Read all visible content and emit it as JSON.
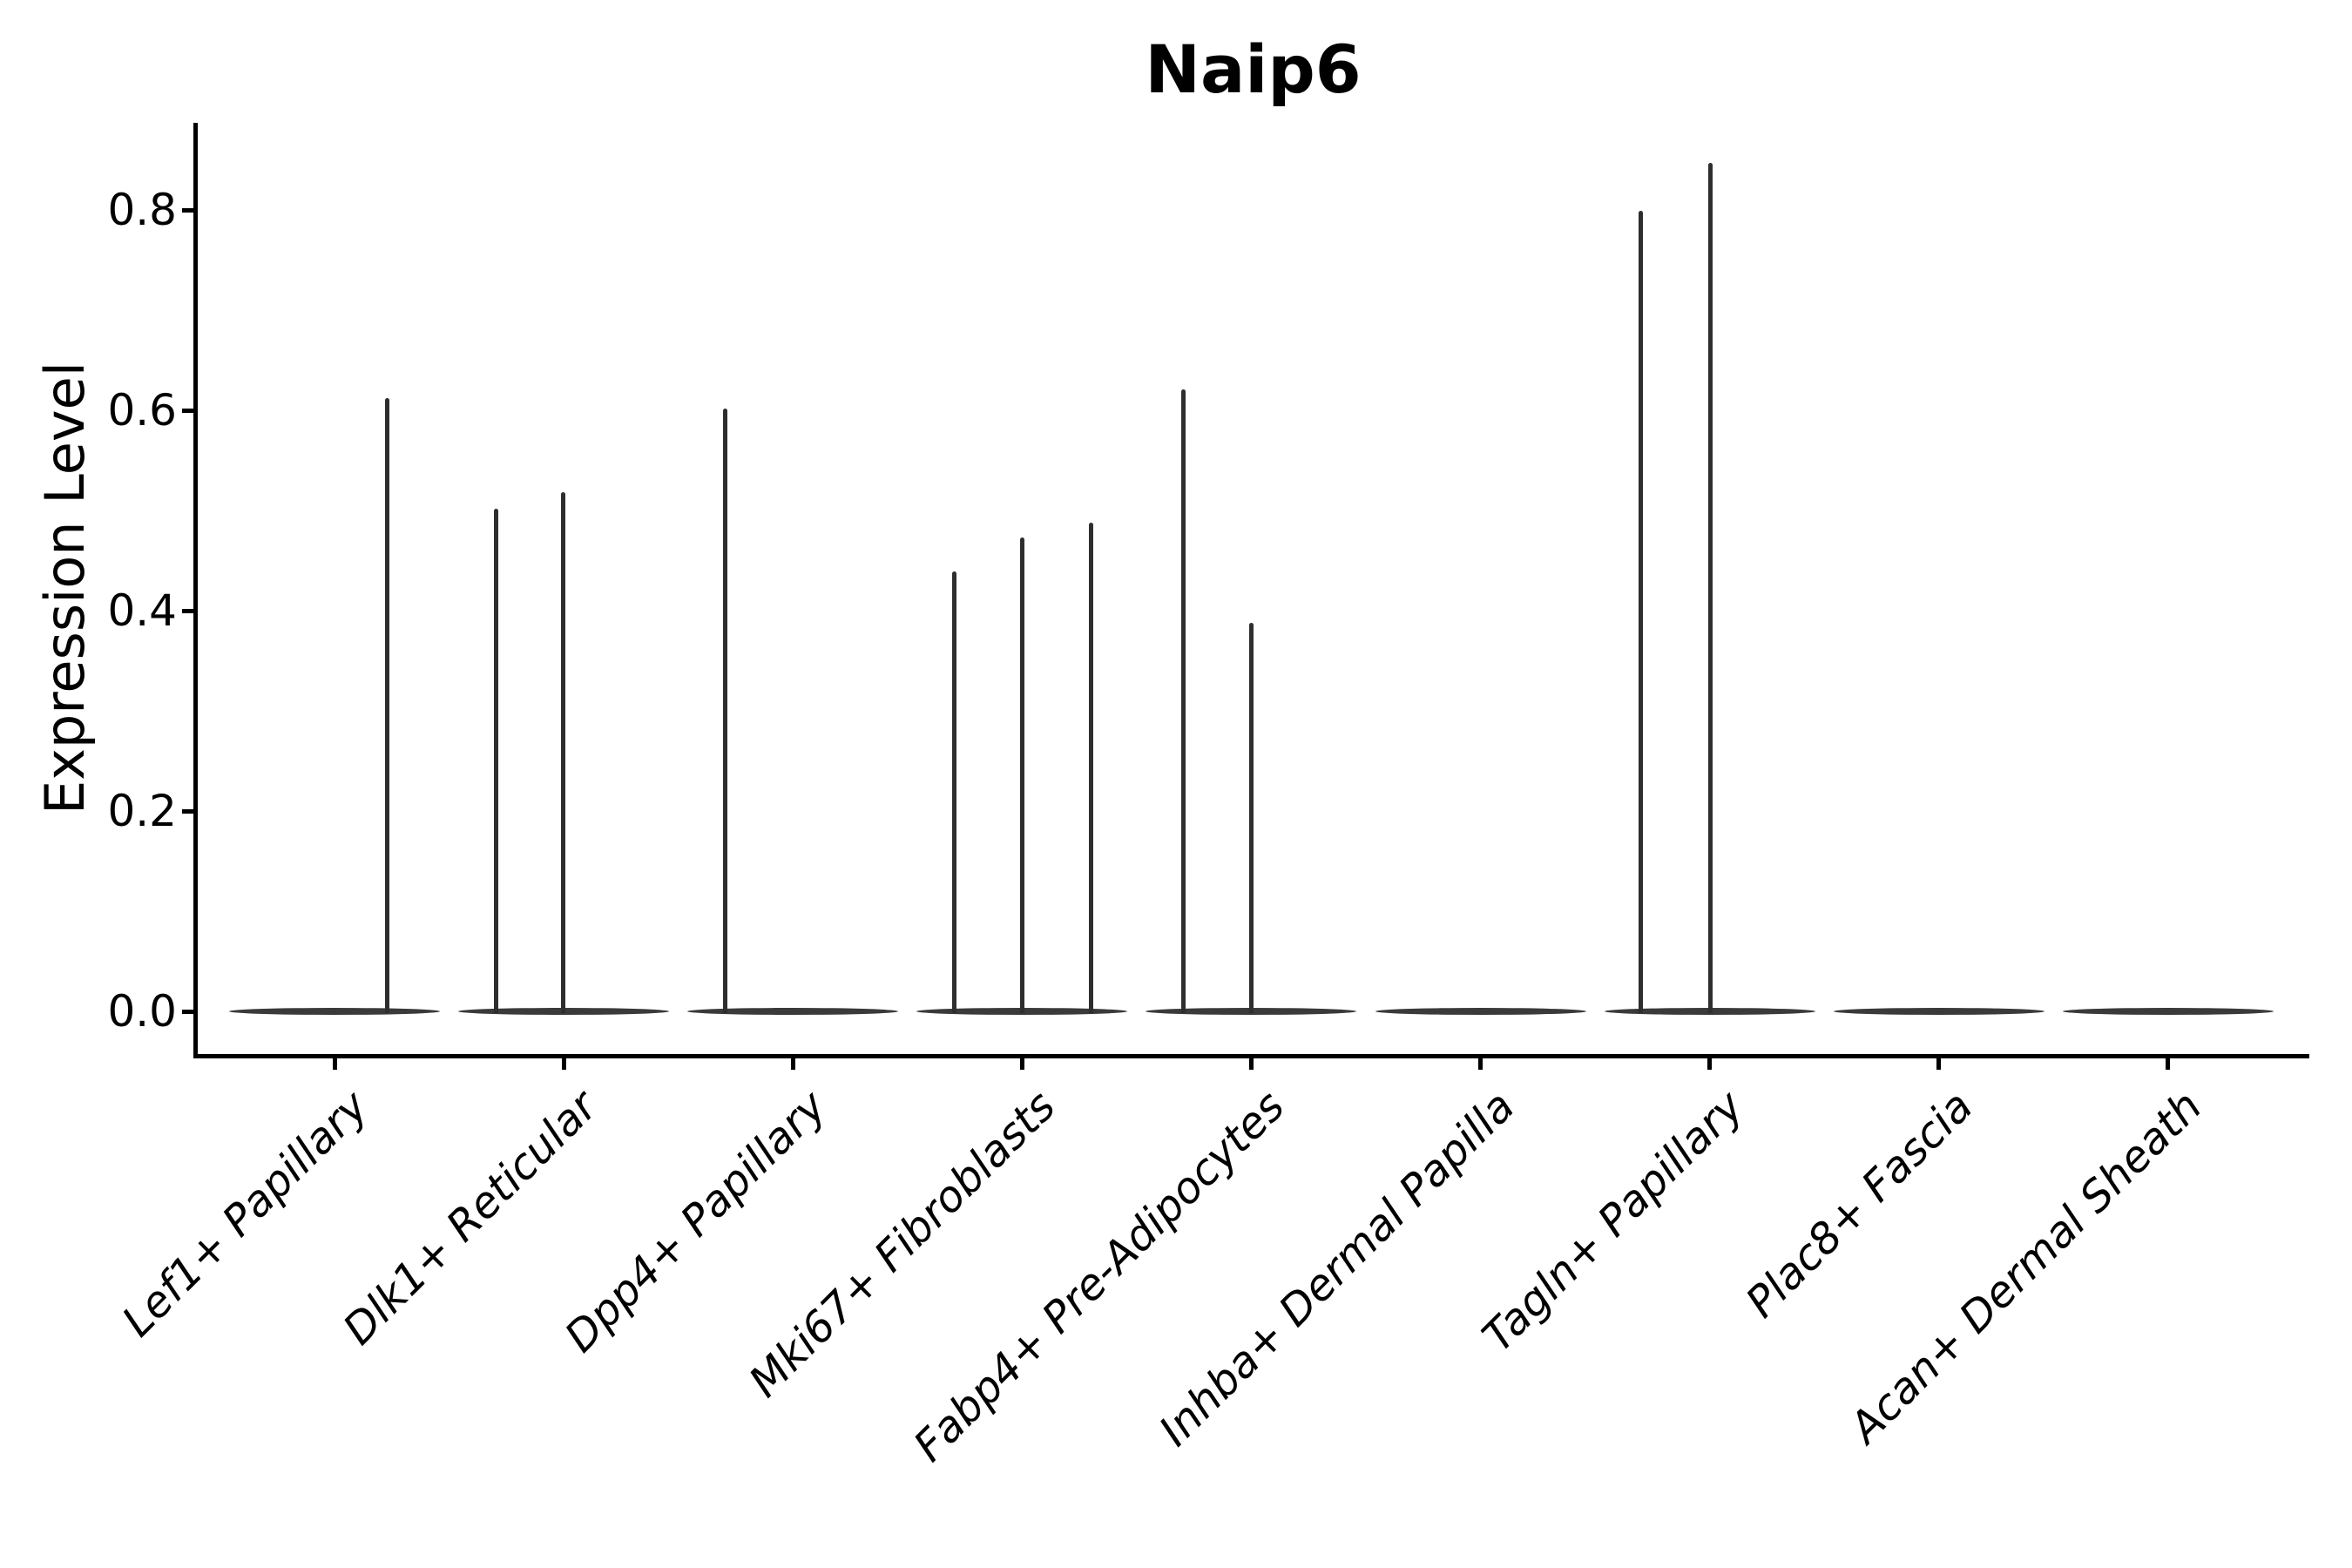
{
  "figure": {
    "title": "Naip6"
  },
  "y_axis": {
    "label": "Expression Level",
    "ticks": [
      "0.0",
      "0.2",
      "0.4",
      "0.6",
      "0.8"
    ],
    "tick_values": [
      0.0,
      0.2,
      0.4,
      0.6,
      0.8
    ]
  },
  "chart_data": {
    "type": "violin",
    "title": "Naip6",
    "xlabel": "",
    "ylabel": "Expression Level",
    "ylim": [
      0.0,
      0.89
    ],
    "yticks": [
      0.0,
      0.2,
      0.4,
      0.6,
      0.8
    ],
    "grid": false,
    "legend": "none",
    "categories": [
      "Lef1+ Papillary",
      "Dlk1+ Reticular",
      "Dpp4+ Papillary",
      "Mki67+ Fibroblasts",
      "Fabp4+ Pre-Adipocytes",
      "Inhba+ Dermal Papilla",
      "Tagln+ Papillary",
      "Plac8+ Fascia",
      "Acan+ Dermal Sheath"
    ],
    "violins": [
      {
        "label": "Lef1+ Papillary",
        "baseline_value": 0.0,
        "spikes": [
          {
            "dx": 60,
            "value": 0.612
          }
        ]
      },
      {
        "label": "Dlk1+ Reticular",
        "baseline_value": 0.0,
        "spikes": [
          {
            "dx": -78,
            "value": 0.502
          },
          {
            "dx": -1,
            "value": 0.518
          }
        ]
      },
      {
        "label": "Dpp4+ Papillary",
        "baseline_value": 0.0,
        "spikes": [
          {
            "dx": -78,
            "value": 0.602
          }
        ]
      },
      {
        "label": "Mki67+ Fibroblasts",
        "baseline_value": 0.0,
        "spikes": [
          {
            "dx": -78,
            "value": 0.439
          },
          {
            "dx": 0,
            "value": 0.473
          },
          {
            "dx": 79,
            "value": 0.488
          }
        ]
      },
      {
        "label": "Fabp4+ Pre-Adipocytes",
        "baseline_value": 0.0,
        "spikes": [
          {
            "dx": -78,
            "value": 0.621
          },
          {
            "dx": 0,
            "value": 0.388
          }
        ]
      },
      {
        "label": "Inhba+ Dermal Papilla",
        "baseline_value": 0.0,
        "spikes": []
      },
      {
        "label": "Tagln+ Papillary",
        "baseline_value": 0.0,
        "spikes": [
          {
            "dx": -79,
            "value": 0.799
          },
          {
            "dx": 1,
            "value": 0.847
          }
        ]
      },
      {
        "label": "Plac8+ Fascia",
        "baseline_value": 0.0,
        "spikes": []
      },
      {
        "label": "Acan+ Dermal Sheath",
        "baseline_value": 0.0,
        "spikes": []
      }
    ],
    "colors": {
      "violin_body": "#3a3a3a",
      "spike": "#2e2e2e",
      "axis": "#000000",
      "text": "#000000",
      "background": "#ffffff"
    }
  }
}
